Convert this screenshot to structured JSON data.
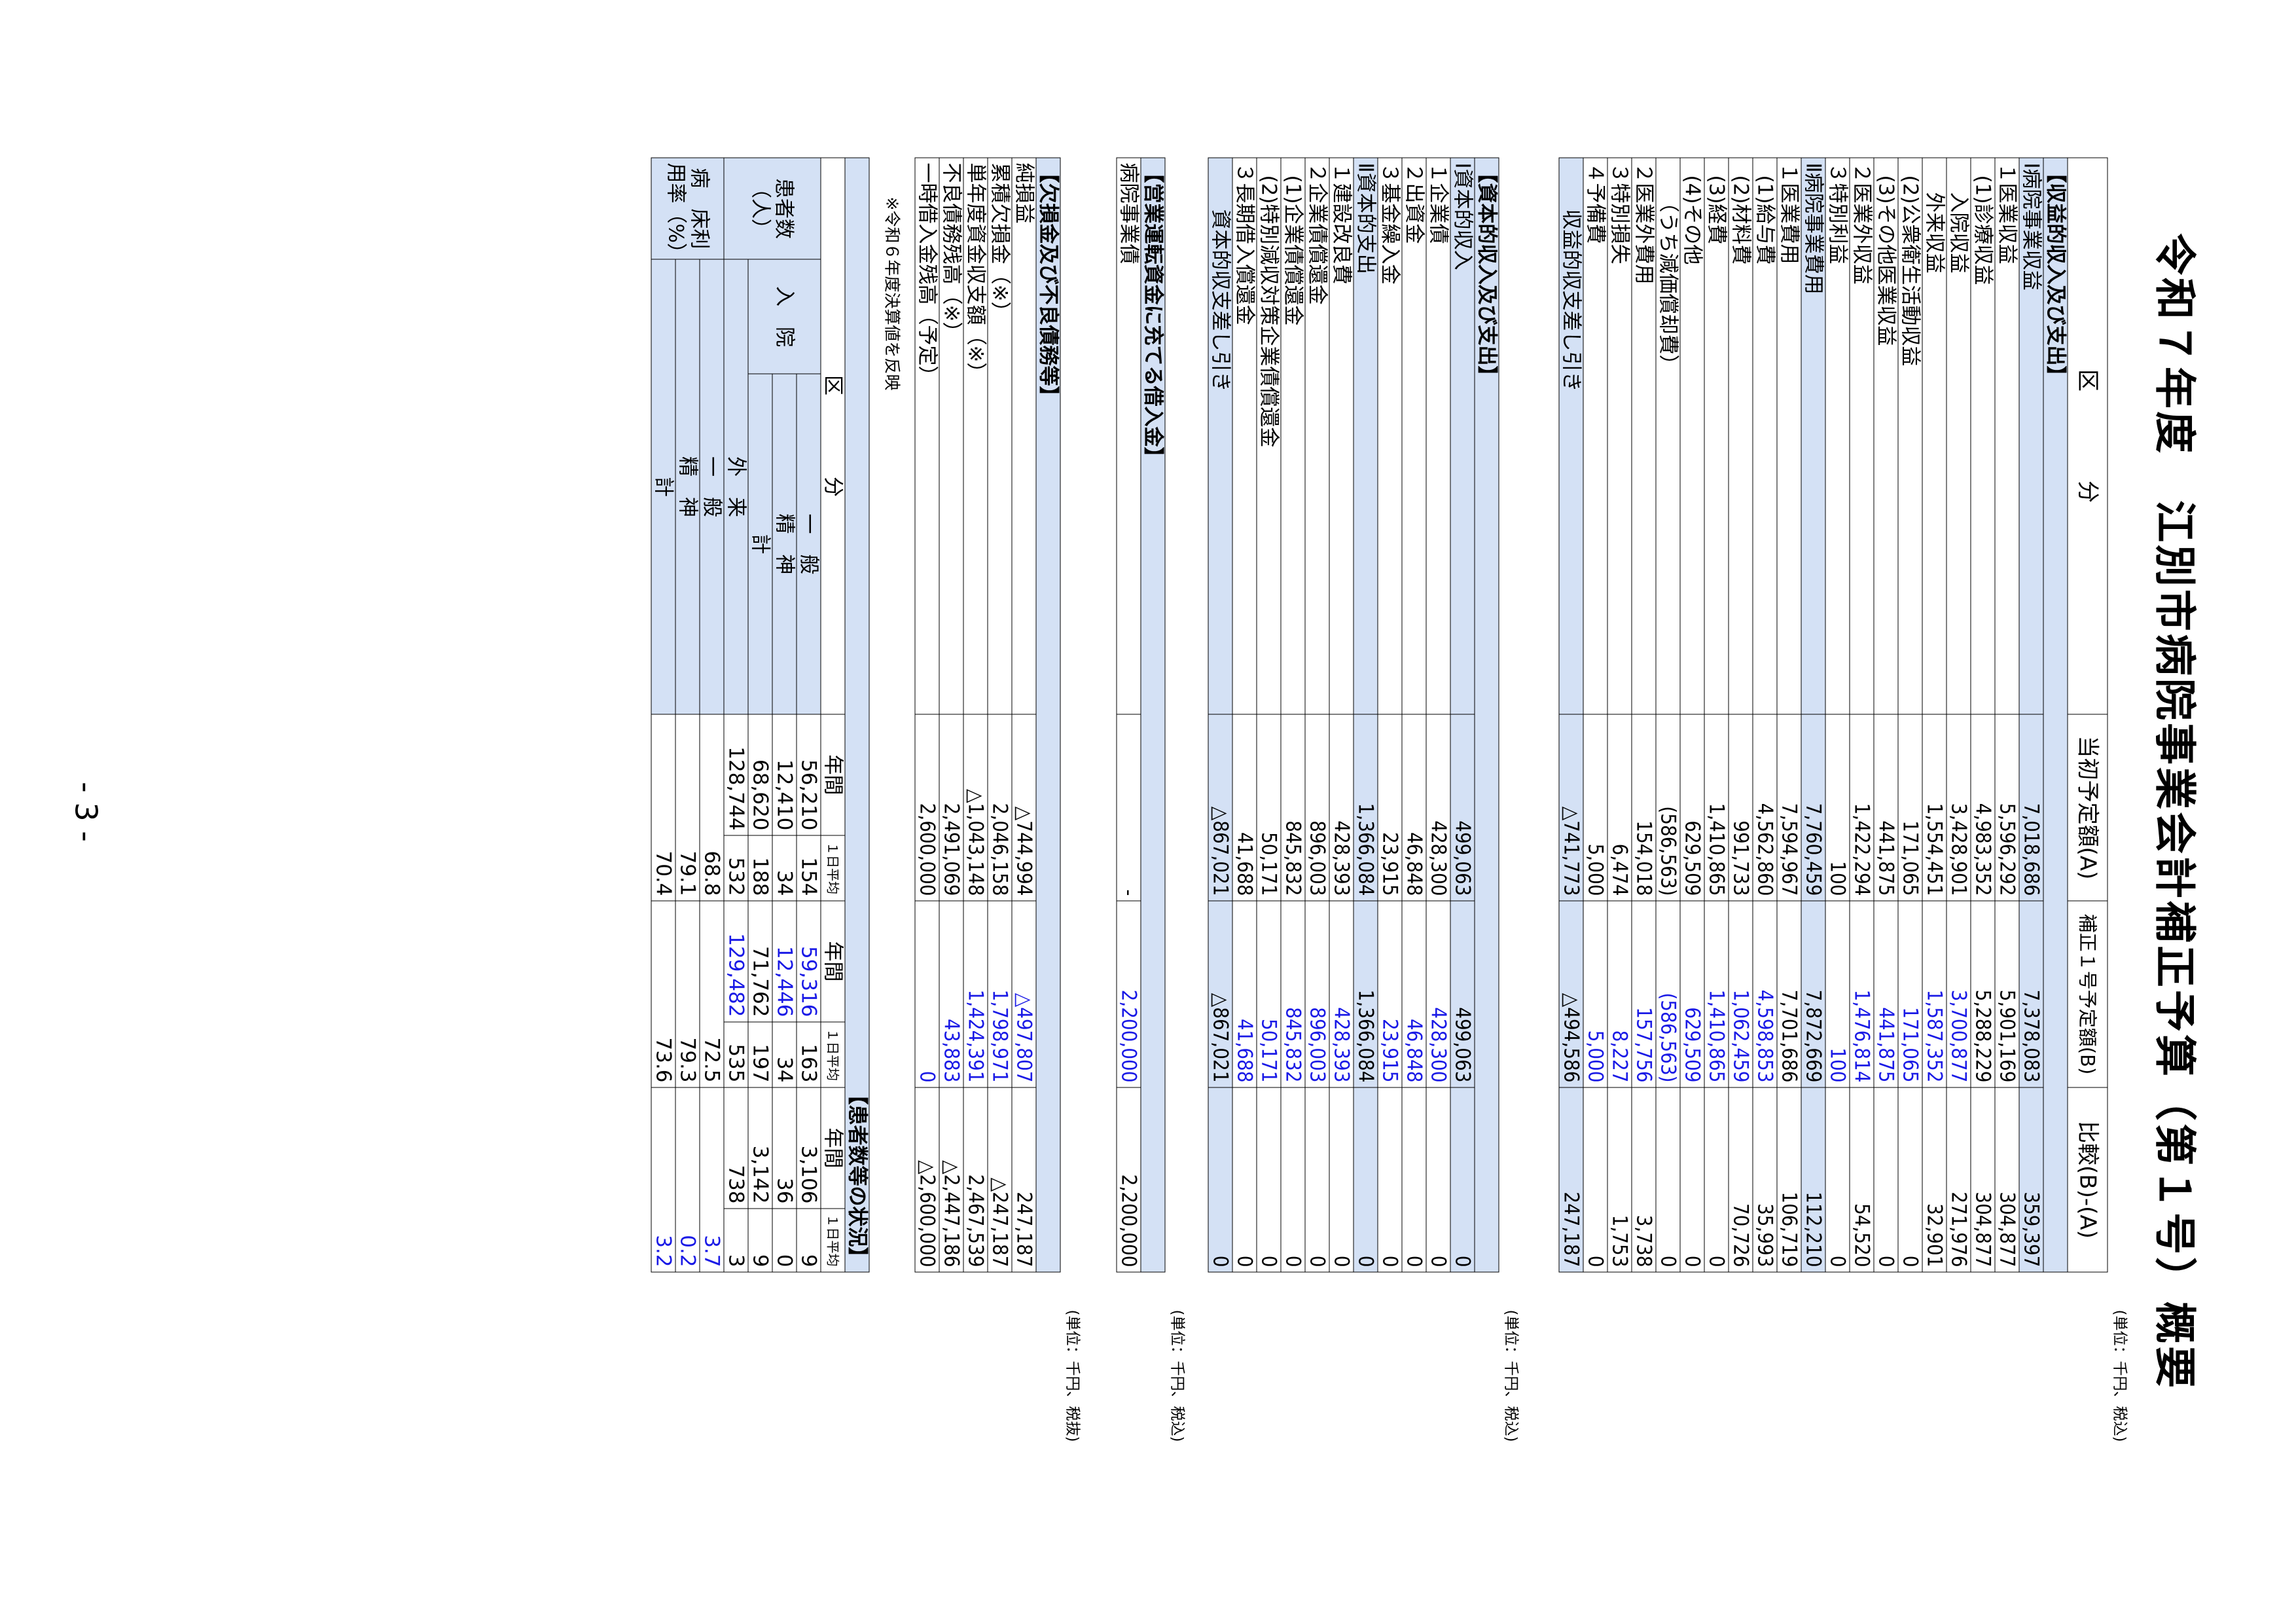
{
  "title": "令和７年度　江別市病院事業会計補正予算（第１号）概要",
  "page_number": "- 3 -",
  "columns": {
    "category": "区　　　　分",
    "initial": "当初予定額(A)",
    "revised": "補正１号予定額(B)",
    "diff": "比較(B)-(A)"
  },
  "units": {
    "tax_excluded": "(単位：千円、税抜)",
    "tax_included": "(単位：千円、税込)"
  },
  "income_section": {
    "title": "【収益的収入及び支出】",
    "rows": [
      {
        "label": "Ⅰ病院事業収益",
        "a": "7,018,686",
        "b": "7,378,083",
        "c": "359,397",
        "level": 0,
        "shade": true
      },
      {
        "label": "１医業収益",
        "a": "5,596,292",
        "b": "5,901,169",
        "c": "304,877",
        "level": 0
      },
      {
        "label": "(1)診療収益",
        "a": "4,983,352",
        "b": "5,288,229",
        "c": "304,877",
        "level": 1
      },
      {
        "label": "入院収益",
        "a": "3,428,901",
        "b": "3,700,877",
        "c": "271,976",
        "level": 2,
        "blue_b": true
      },
      {
        "label": "外来収益",
        "a": "1,554,451",
        "b": "1,587,352",
        "c": "32,901",
        "level": 2,
        "blue_b": true
      },
      {
        "label": "(2)公衆衛生活動収益",
        "a": "171,065",
        "b": "171,065",
        "c": "0",
        "level": 1,
        "blue_b": true
      },
      {
        "label": "(3)その他医業収益",
        "a": "441,875",
        "b": "441,875",
        "c": "0",
        "level": 1,
        "blue_b": true
      },
      {
        "label": "２医業外収益",
        "a": "1,422,294",
        "b": "1,476,814",
        "c": "54,520",
        "level": 0,
        "blue_b": true
      },
      {
        "label": "３特別利益",
        "a": "100",
        "b": "100",
        "c": "0",
        "level": 0,
        "blue_b": true
      },
      {
        "label": "Ⅱ病院事業費用",
        "a": "7,760,459",
        "b": "7,872,669",
        "c": "112,210",
        "level": 0,
        "shade": true
      },
      {
        "label": "１医業費用",
        "a": "7,594,967",
        "b": "7,701,686",
        "c": "106,719",
        "level": 0
      },
      {
        "label": "(1)給与費",
        "a": "4,562,860",
        "b": "4,598,853",
        "c": "35,993",
        "level": 1,
        "blue_b": true
      },
      {
        "label": "(2)材料費",
        "a": "991,733",
        "b": "1,062,459",
        "c": "70,726",
        "level": 1,
        "blue_b": true
      },
      {
        "label": "(3)経費",
        "a": "1,410,865",
        "b": "1,410,865",
        "c": "0",
        "level": 1,
        "blue_b": true
      },
      {
        "label": "(4)その他",
        "a": "629,509",
        "b": "629,509",
        "c": "0",
        "level": 1,
        "blue_b": true
      },
      {
        "label": "（うち減価償却費）",
        "a": "(586,563)",
        "b": "(586,563)",
        "c": "0",
        "level": 2,
        "blue_b": true
      },
      {
        "label": "２医業外費用",
        "a": "154,018",
        "b": "157,756",
        "c": "3,738",
        "level": 0,
        "blue_b": true
      },
      {
        "label": "３特別損失",
        "a": "6,474",
        "b": "8,227",
        "c": "1,753",
        "level": 0,
        "blue_b": true
      },
      {
        "label": "４予備費",
        "a": "5,000",
        "b": "5,000",
        "c": "0",
        "level": 0,
        "blue_b": true
      },
      {
        "label": "収益的収支差し引き",
        "a": "△741,773",
        "b": "△494,586",
        "c": "247,187",
        "level": 3,
        "shade": true
      }
    ]
  },
  "capital_section": {
    "title": "【資本的収入及び支出】",
    "rows": [
      {
        "label": "Ⅰ資本的収入",
        "a": "499,063",
        "b": "499,063",
        "c": "0",
        "level": 0,
        "shade": true
      },
      {
        "label": "１企業債",
        "a": "428,300",
        "b": "428,300",
        "c": "0",
        "level": 0,
        "blue_b": true
      },
      {
        "label": "２出資金",
        "a": "46,848",
        "b": "46,848",
        "c": "0",
        "level": 0,
        "blue_b": true
      },
      {
        "label": "３基金繰入金",
        "a": "23,915",
        "b": "23,915",
        "c": "0",
        "level": 0,
        "blue_b": true
      },
      {
        "label": "Ⅱ資本的支出",
        "a": "1,366,084",
        "b": "1,366,084",
        "c": "0",
        "level": 0,
        "shade": true
      },
      {
        "label": "１建設改良費",
        "a": "428,393",
        "b": "428,393",
        "c": "0",
        "level": 0,
        "blue_b": true
      },
      {
        "label": "２企業債償還金",
        "a": "896,003",
        "b": "896,003",
        "c": "0",
        "level": 0,
        "blue_b": true
      },
      {
        "label": "(1)企業債償還金",
        "a": "845,832",
        "b": "845,832",
        "c": "0",
        "level": 1,
        "blue_b": true
      },
      {
        "label": "(2)特別減収対策企業債償還金",
        "a": "50,171",
        "b": "50,171",
        "c": "0",
        "level": 1,
        "blue_b": true
      },
      {
        "label": "３長期借入償還金",
        "a": "41,688",
        "b": "41,688",
        "c": "0",
        "level": 0,
        "blue_b": true
      },
      {
        "label": "資本的収支差し引き",
        "a": "△867,021",
        "b": "△867,021",
        "c": "0",
        "level": 3,
        "shade": true
      }
    ]
  },
  "operating_loan": {
    "title": "【営業運転資金に充てる借入金】",
    "rows": [
      {
        "label": "病院事業債",
        "a": "-",
        "b": "2,200,000",
        "c": "2,200,000",
        "level": 0,
        "blue_b": true
      }
    ]
  },
  "deficit_section": {
    "title": "【欠損金及び不良債務等】",
    "note": "※令和６年度決算値を反映",
    "rows": [
      {
        "label": "純損益",
        "a": "△744,994",
        "b": "△497,807",
        "c": "247,187",
        "level": 0,
        "blue_b": true
      },
      {
        "label": "累積欠損金（※）",
        "a": "2,046,158",
        "b": "1,798,971",
        "c": "△247,187",
        "level": 0,
        "blue_b": true
      },
      {
        "label": "単年度資金収支額（※）",
        "a": "△1,043,148",
        "b": "1,424,391",
        "c": "2,467,539",
        "level": 0,
        "blue_b": true
      },
      {
        "label": "不良債務残高（※）",
        "a": "2,491,069",
        "b": "43,883",
        "c": "△2,447,186",
        "level": 0,
        "blue_b": true
      },
      {
        "label": "一時借入金残高（予定）",
        "a": "2,600,000",
        "b": "0",
        "c": "△2,600,000",
        "level": 0,
        "blue_b": true
      }
    ]
  },
  "patients": {
    "title": "【患者数等の状況】",
    "header_label": "区　　　　分",
    "annual": "年間",
    "daily": "１日平均",
    "patients_label": "患者数（人）",
    "inpatient": "入　院",
    "general": "一　般",
    "psychiatric": "精　神",
    "total": "計",
    "outpatient": "外　来",
    "bed_label": "病　床利用率（%）",
    "rows": {
      "in_general": {
        "a1": "56,210",
        "a2": "154",
        "b1": "59,316",
        "b2": "163",
        "c1": "3,106",
        "c2": "9"
      },
      "in_psych": {
        "a1": "12,410",
        "a2": "34",
        "b1": "12,446",
        "b2": "34",
        "c1": "36",
        "c2": "0"
      },
      "in_total": {
        "a1": "68,620",
        "a2": "188",
        "b1": "71,762",
        "b2": "197",
        "c1": "3,142",
        "c2": "9"
      },
      "outpatient": {
        "a1": "128,744",
        "a2": "532",
        "b1": "129,482",
        "b2": "535",
        "c1": "738",
        "c2": "3"
      },
      "bed_general": {
        "a": "68.8",
        "b": "72.5",
        "c": "3.7"
      },
      "bed_psych": {
        "a": "79.1",
        "b": "79.3",
        "c": "0.2"
      },
      "bed_total": {
        "a": "70.4",
        "b": "73.6",
        "c": "3.2"
      }
    }
  }
}
